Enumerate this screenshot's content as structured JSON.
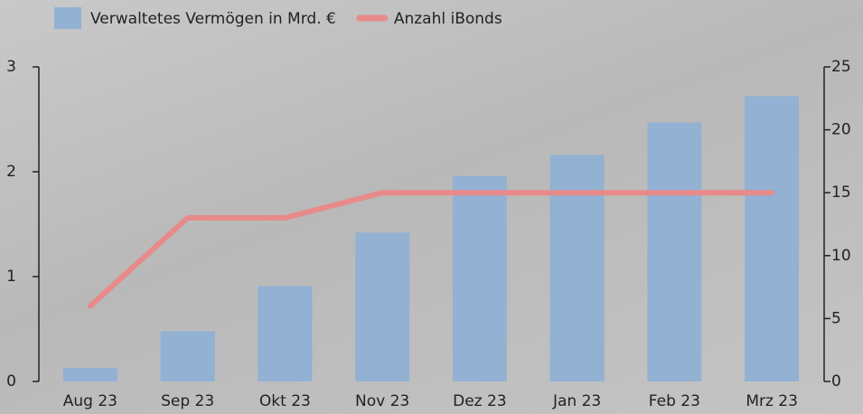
{
  "chart_data": {
    "type": "bar",
    "categories": [
      "Aug 23",
      "Sep 23",
      "Okt 23",
      "Nov 23",
      "Dez 23",
      "Jan 23",
      "Feb 23",
      "Mrz 23"
    ],
    "series": [
      {
        "name": "Verwaltetes Vermögen in Mrd. €",
        "type": "bar",
        "color": "#92b1d3",
        "values": [
          0.13,
          0.48,
          0.91,
          1.42,
          1.96,
          2.16,
          2.47,
          2.72
        ]
      },
      {
        "name": "Anzahl iBonds",
        "type": "line",
        "axis": "y2",
        "color": "#e88a8a",
        "values": [
          6,
          13,
          13,
          15,
          15,
          15,
          15,
          15
        ]
      }
    ],
    "ylim": [
      0,
      3
    ],
    "yticks": [
      0,
      1,
      2,
      3
    ],
    "y2lim": [
      0,
      25
    ],
    "y2ticks": [
      0,
      5,
      10,
      15,
      20,
      25
    ],
    "legend": "top"
  }
}
